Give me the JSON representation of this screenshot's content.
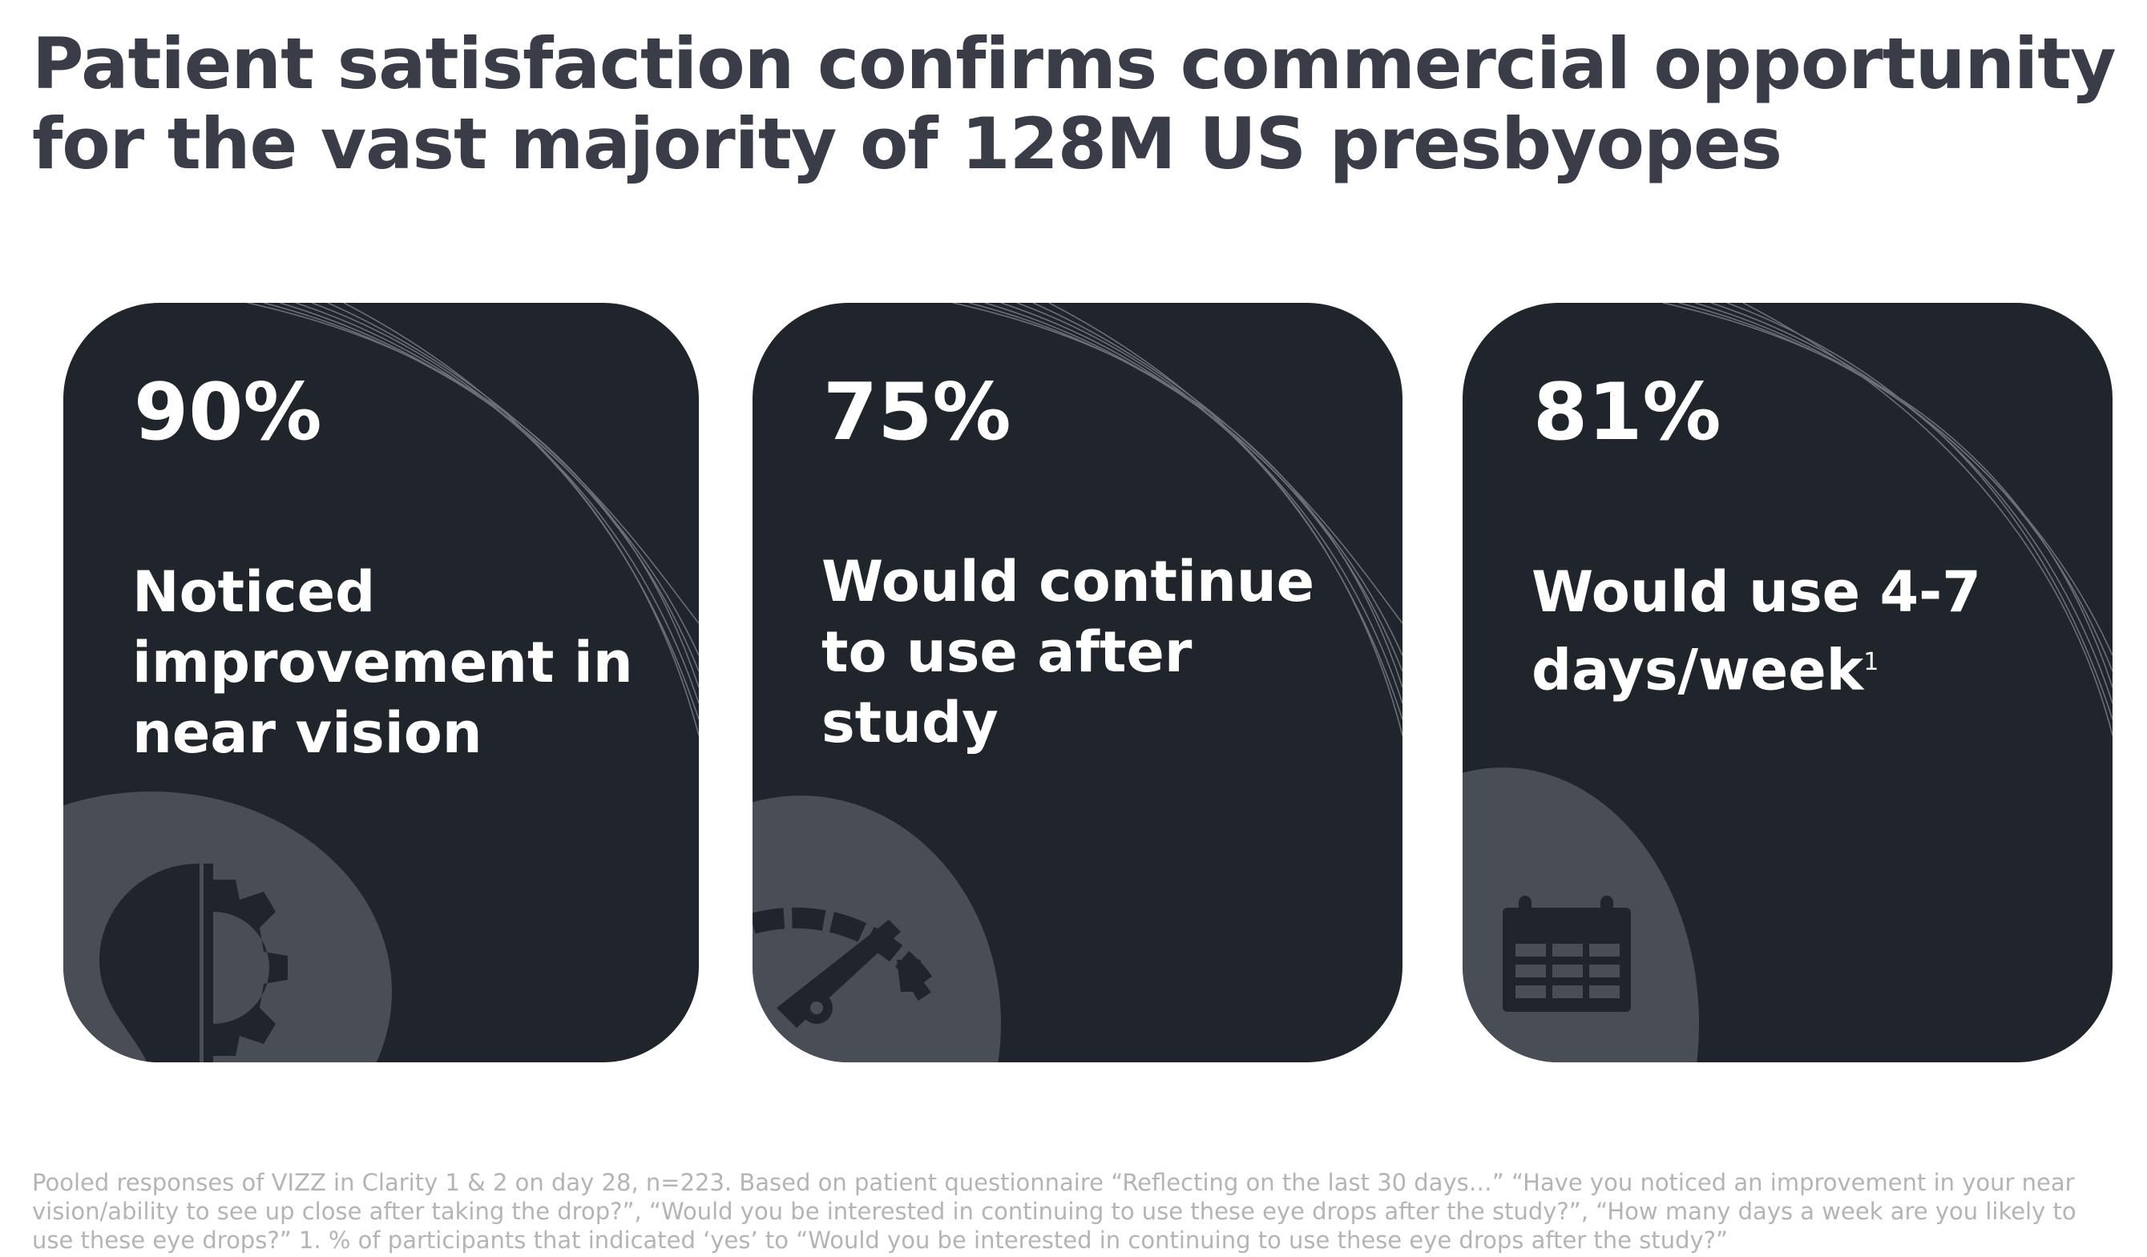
{
  "title": "Patient satisfaction confirms commercial opportunity for the vast majority of 128M US presbyopes",
  "cards": [
    {
      "value": "90%",
      "label": "Noticed improvement in near vision",
      "icon": "lightbulb-gear-icon"
    },
    {
      "value": "75%",
      "label": "Would continue to use after study",
      "icon": "speedometer-icon"
    },
    {
      "value": "81%",
      "label": "Would use 4-7 days/week",
      "superscript": "1",
      "icon": "calendar-icon"
    }
  ],
  "colors": {
    "card_bg": "#20252c",
    "circle": "#494d55",
    "title": "#3a3d48",
    "footnote": "#b4b4b4"
  },
  "footnote": "Pooled responses of VIZZ in Clarity 1 & 2 on day 28, n=223. Based on patient questionnaire “Reflecting on the last 30 days…” “Have you noticed an improvement in your near vision/ability to see up close after taking the drop?”, “Would you be interested in continuing to use these eye drops after the study?”, “How many days a week are you likely to use these eye drops?” 1. % of participants that indicated ‘yes’ to “Would you be interested in continuing to use these eye drops after the study?”"
}
